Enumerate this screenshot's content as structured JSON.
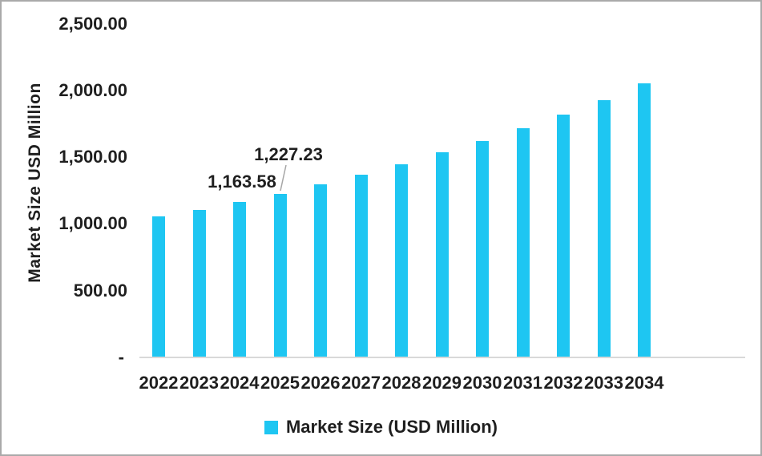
{
  "chart_data": {
    "type": "bar",
    "title": "",
    "xlabel": "",
    "ylabel": "Market Size USD Million",
    "categories": [
      "2022",
      "2023",
      "2024",
      "2025",
      "2026",
      "2027",
      "2028",
      "2029",
      "2030",
      "2031",
      "2032",
      "2033",
      "2034"
    ],
    "series": [
      {
        "name": "Market Size (USD Million)",
        "values": [
          1055,
          1105,
          1163.58,
          1227.23,
          1300,
          1370,
          1445,
          1535,
          1620,
          1715,
          1820,
          1930,
          2055
        ]
      }
    ],
    "ylim": [
      0,
      2500
    ],
    "ytick_step": 500,
    "grid": false,
    "legend_position": "bottom",
    "bar_color": "#1ec6f2",
    "axis_line_color": "#d9d9d9",
    "yticks": [
      {
        "value": 2500,
        "label": "2,500.00"
      },
      {
        "value": 2000,
        "label": "2,000.00"
      },
      {
        "value": 1500,
        "label": "1,500.00"
      },
      {
        "value": 1000,
        "label": "1,000.00"
      },
      {
        "value": 500,
        "label": "500.00"
      },
      {
        "value": 0,
        "label": "-"
      }
    ],
    "data_labels": [
      {
        "category": "2024",
        "text": "1,163.58"
      },
      {
        "category": "2025",
        "text": "1,227.23"
      }
    ]
  },
  "legend": {
    "label": "Market Size (USD Million)",
    "swatch_color": "#1ec6f2"
  }
}
